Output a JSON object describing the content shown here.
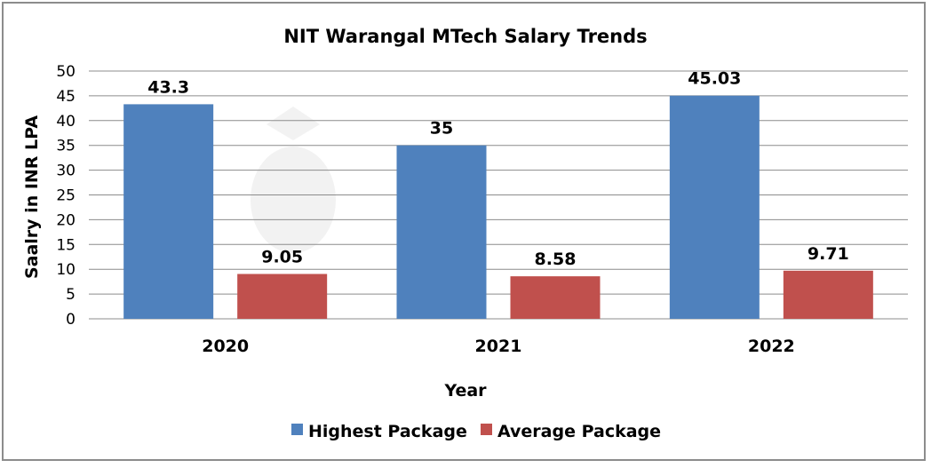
{
  "chart_data": {
    "type": "bar",
    "title": "NIT Warangal MTech Salary Trends",
    "xlabel": "Year",
    "ylabel": "Saalry in INR LPA",
    "categories": [
      "2020",
      "2021",
      "2022"
    ],
    "series": [
      {
        "name": "Highest Package",
        "values": [
          43.3,
          35,
          45.03
        ],
        "labels": [
          "43.3",
          "35",
          "45.03"
        ],
        "color": "#4f81bd"
      },
      {
        "name": "Average Package",
        "values": [
          9.05,
          8.58,
          9.71
        ],
        "labels": [
          "9.05",
          "8.58",
          "9.71"
        ],
        "color": "#c0504d"
      }
    ],
    "ylim": [
      0,
      50
    ],
    "yticks": [
      "0",
      "5",
      "10",
      "15",
      "20",
      "25",
      "30",
      "35",
      "40",
      "45",
      "50"
    ],
    "grid": true,
    "legend": "bottom",
    "watermark": "shiksha"
  }
}
